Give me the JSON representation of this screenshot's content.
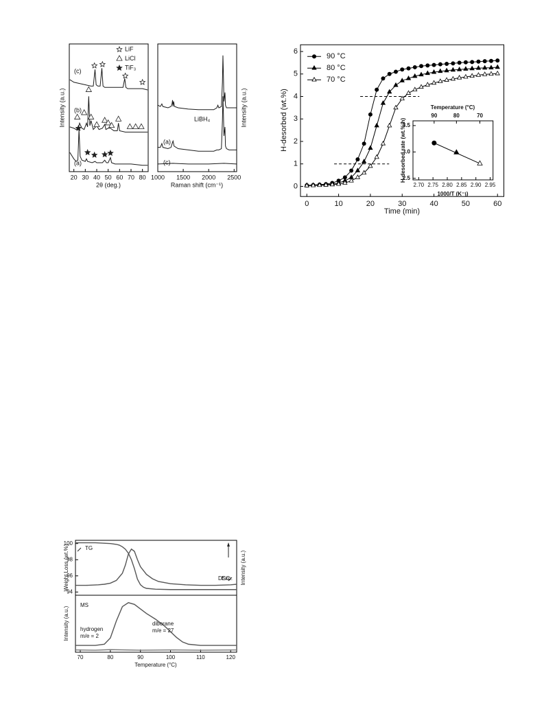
{
  "chart_data": [
    {
      "type": "line",
      "x_label": "2θ (deg.)",
      "y_label": "Intensity (a.u.)",
      "xlim": [
        16,
        85
      ],
      "ylim": [
        0,
        100
      ],
      "xticks": [
        20,
        30,
        40,
        50,
        60,
        70,
        80
      ],
      "series": [
        {
          "name": "(a)",
          "color": "#1a1a1a",
          "x": [
            16.5,
            20,
            22,
            23.5,
            24.5,
            25.5,
            27,
            30,
            31,
            32,
            36,
            38.5,
            40,
            45,
            47,
            48.5,
            50,
            52,
            53,
            56,
            60,
            70,
            80,
            84.5
          ],
          "values": [
            15,
            10,
            8,
            9,
            33,
            12,
            9,
            8,
            10,
            8,
            7,
            8,
            7,
            7,
            9,
            7,
            7,
            11,
            7,
            6,
            6,
            6,
            5,
            5
          ]
        },
        {
          "name": "(b)",
          "color": "#1a1a1a",
          "x": [
            16.5,
            20,
            22,
            24,
            25,
            27,
            29,
            31,
            32,
            33,
            34,
            35,
            37,
            40,
            42,
            45,
            47,
            48,
            50,
            52,
            55,
            58,
            59,
            60,
            65,
            70,
            75,
            80,
            84.5
          ],
          "values": [
            35,
            34,
            33,
            34,
            38,
            34,
            33,
            38,
            35,
            59,
            36,
            40,
            33,
            36,
            33,
            34,
            37,
            33,
            34,
            34,
            32,
            32,
            38,
            32,
            31,
            31,
            31,
            31,
            31
          ]
        },
        {
          "name": "(c)",
          "color": "#1a1a1a",
          "x": [
            16.5,
            20,
            25,
            30,
            35,
            37,
            38.5,
            39.5,
            41,
            43,
            44.5,
            45.5,
            47,
            55,
            60,
            63,
            64.5,
            65.5,
            67,
            75,
            80,
            84.5
          ],
          "values": [
            72,
            70,
            69,
            68,
            67,
            67,
            80,
            68,
            67,
            67,
            81,
            67,
            66,
            66,
            66,
            66,
            73,
            66,
            65,
            65,
            65,
            64
          ]
        }
      ],
      "peak_markers": [
        {
          "name": "LiF",
          "symbol": "open-star",
          "x": [
            38,
            45,
            65,
            80
          ],
          "y": [
            83,
            84,
            75,
            70
          ]
        },
        {
          "name": "LiCl",
          "symbol": "open-triangle",
          "x": [
            23,
            29,
            33,
            35,
            40,
            47,
            50,
            53,
            59,
            69,
            74,
            79
          ],
          "y": [
            42.5,
            46,
            64,
            42.5,
            36.6,
            40,
            38,
            36,
            41,
            35,
            35,
            35
          ]
        },
        {
          "name": "TiF₃",
          "symbol": "filled-star",
          "x": [
            24,
            32,
            38,
            47,
            52
          ],
          "y": [
            34,
            15,
            13,
            13.4,
            14.5
          ]
        }
      ]
    },
    {
      "type": "line",
      "x_label": "Raman shift (cm⁻¹)",
      "y_label": "Intensity (a.u.)",
      "xlim": [
        1000,
        2550
      ],
      "ylim": [
        0,
        100
      ],
      "xticks": [
        1000,
        1500,
        2000,
        2500
      ],
      "series": [
        {
          "name": "LiBH₄",
          "color": "#1a1a1a",
          "x": [
            1005,
            1050,
            1080,
            1100,
            1200,
            1260,
            1280,
            1290,
            1300,
            1310,
            1330,
            1400,
            1600,
            1800,
            2000,
            2100,
            2160,
            2180,
            2200,
            2250,
            2270,
            2280,
            2290,
            2300,
            2320,
            2330,
            2350,
            2400,
            2500,
            2545
          ],
          "values": [
            52,
            51,
            53,
            51,
            50,
            51,
            53,
            56,
            51,
            55,
            51,
            50,
            49,
            48.5,
            48.5,
            48.5,
            50,
            52,
            50,
            51,
            70,
            91,
            75,
            55,
            62,
            52,
            50,
            50,
            50,
            50
          ]
        },
        {
          "name": "(a)",
          "color": "#1a1a1a",
          "x": [
            1005,
            1050,
            1080,
            1100,
            1200,
            1260,
            1290,
            1300,
            1320,
            1400,
            1600,
            1800,
            2000,
            2100,
            2160,
            2200,
            2250,
            2270,
            2280,
            2290,
            2300,
            2320,
            2330,
            2350,
            2400,
            2500,
            2545
          ],
          "values": [
            19,
            19,
            22,
            19,
            18,
            19,
            23,
            24,
            20,
            18,
            17,
            16,
            16,
            16,
            17,
            17,
            18,
            40,
            59,
            45,
            28,
            35,
            20,
            18,
            17,
            17,
            17
          ]
        },
        {
          "name": "(c)",
          "color": "#1a1a1a",
          "x": [
            1005,
            1300,
            1600,
            2000,
            2300,
            2545
          ],
          "values": [
            6,
            6.5,
            6,
            6,
            6.5,
            6
          ]
        }
      ]
    },
    {
      "type": "line",
      "x_label": "Time (min)",
      "y_label": "H-desorbed (wt.%)",
      "xlim": [
        -2,
        62
      ],
      "ylim": [
        -0.45,
        6.3
      ],
      "xticks": [
        0,
        10,
        20,
        30,
        40,
        50,
        60
      ],
      "yticks": [
        0,
        1,
        2,
        3,
        4,
        5,
        6
      ],
      "legend": "upper left",
      "series": [
        {
          "name": "90 °C",
          "color": "#000000",
          "marker": "circle",
          "x": [
            0,
            2,
            4,
            6,
            8,
            10,
            12,
            14,
            16,
            18,
            20,
            22,
            24,
            26,
            28,
            30,
            32,
            34,
            36,
            38,
            40,
            42,
            44,
            46,
            48,
            50,
            52,
            54,
            56,
            58,
            60
          ],
          "values": [
            0.05,
            0.06,
            0.08,
            0.1,
            0.15,
            0.25,
            0.4,
            0.7,
            1.2,
            1.9,
            3.2,
            4.3,
            4.8,
            5.0,
            5.1,
            5.2,
            5.25,
            5.3,
            5.35,
            5.38,
            5.4,
            5.43,
            5.45,
            5.47,
            5.5,
            5.52,
            5.53,
            5.55,
            5.57,
            5.58,
            5.6
          ]
        },
        {
          "name": "80 °C",
          "color": "#000000",
          "marker": "triangle",
          "x": [
            0,
            2,
            4,
            6,
            8,
            10,
            12,
            14,
            16,
            18,
            20,
            22,
            24,
            26,
            28,
            30,
            32,
            34,
            36,
            38,
            40,
            42,
            44,
            46,
            48,
            50,
            52,
            54,
            56,
            58,
            60
          ],
          "values": [
            0.05,
            0.05,
            0.06,
            0.08,
            0.1,
            0.15,
            0.25,
            0.4,
            0.7,
            1.1,
            1.7,
            2.7,
            3.7,
            4.2,
            4.5,
            4.7,
            4.8,
            4.9,
            4.97,
            5.03,
            5.08,
            5.12,
            5.15,
            5.18,
            5.2,
            5.22,
            5.24,
            5.26,
            5.27,
            5.28,
            5.3
          ]
        },
        {
          "name": "70 °C",
          "color": "#000000",
          "marker": "open-triangle",
          "x": [
            0,
            2,
            4,
            6,
            8,
            10,
            12,
            14,
            16,
            18,
            20,
            22,
            24,
            26,
            28,
            30,
            32,
            34,
            36,
            38,
            40,
            42,
            44,
            46,
            48,
            50,
            52,
            54,
            56,
            58,
            60
          ],
          "values": [
            0.03,
            0.04,
            0.05,
            0.06,
            0.08,
            0.1,
            0.15,
            0.25,
            0.4,
            0.6,
            0.9,
            1.3,
            1.9,
            2.7,
            3.5,
            3.9,
            4.15,
            4.3,
            4.42,
            4.52,
            4.6,
            4.67,
            4.73,
            4.78,
            4.83,
            4.87,
            4.91,
            4.95,
            4.98,
            5.0,
            5.02
          ]
        }
      ],
      "reference_lines": [
        {
          "y": 1,
          "x": [
            8.6,
            25.9
          ]
        },
        {
          "y": 4,
          "x": [
            16.8,
            35.4
          ]
        }
      ]
    },
    {
      "type": "scatter",
      "x_label": "1000/T (K⁻¹)",
      "y_label": "H-desorbed rate (wt.%/h)",
      "x2_label": "Temperature (°C)",
      "xlim": [
        2.68,
        2.96
      ],
      "ylim": [
        2.47,
        3.59
      ],
      "xticks": [
        {
          "value": 2.7,
          "label": "2.70"
        },
        2.75,
        {
          "value": 2.8,
          "label": "2.80"
        },
        2.85,
        {
          "value": 2.9,
          "label": "2.90"
        },
        2.95
      ],
      "yticks": [
        2.5,
        {
          "value": 3,
          "label": "3.0"
        },
        3.5
      ],
      "x2ticks": [
        {
          "value": 2.754,
          "label": "90"
        },
        {
          "value": 2.832,
          "label": "80"
        },
        {
          "value": 2.914,
          "label": "70"
        }
      ],
      "fit_line": true,
      "series": [
        {
          "color": "#000000",
          "markers": [
            "circle",
            "triangle",
            "open-triangle"
          ],
          "x": [
            2.754,
            2.832,
            2.914
          ],
          "values": [
            3.17,
            2.99,
            2.78
          ]
        }
      ]
    },
    {
      "type": "line",
      "y_label": "Weight Loss (wt.%)",
      "y2_label": "Intensity (a.u.)",
      "xlim": [
        68.4,
        122
      ],
      "ylim": [
        93.6,
        100.4
      ],
      "y2lim": [
        0,
        100
      ],
      "yticks": [
        94,
        96,
        98,
        100
      ],
      "annotations": [
        "Exo."
      ],
      "series": [
        {
          "name": "TG",
          "color": "#555555",
          "x": [
            68.4,
            75,
            80,
            82,
            83,
            84,
            85,
            86,
            87,
            88,
            89,
            90,
            91,
            92,
            95,
            100,
            110,
            122
          ],
          "values": [
            100.1,
            100.1,
            100,
            99.9,
            99.8,
            99.6,
            99.3,
            98.8,
            98,
            96.9,
            95.6,
            94.9,
            94.6,
            94.45,
            94.35,
            94.3,
            94.3,
            94.3
          ]
        },
        {
          "name": "DSC",
          "color": "#555555",
          "axis": "y2",
          "x": [
            68.4,
            72,
            76,
            78,
            80,
            82,
            84,
            85,
            86,
            87,
            88,
            89,
            90,
            92,
            94,
            96,
            100,
            105,
            110,
            115,
            120,
            122
          ],
          "values": [
            18,
            18,
            19,
            20,
            22,
            27,
            40,
            55,
            75,
            84,
            80,
            65,
            52,
            38,
            30,
            25,
            21,
            19,
            18,
            18,
            19,
            20
          ]
        }
      ]
    },
    {
      "type": "line",
      "x_label": "Temperature (°C)",
      "y_label": "Intensity (a.u.)",
      "xlim": [
        68.4,
        122
      ],
      "ylim": [
        0,
        100
      ],
      "xticks": [
        70,
        80,
        90,
        100,
        110,
        120
      ],
      "annotations": [
        "MS",
        "m/e = 2",
        "m/e = 27"
      ],
      "series": [
        {
          "name": "hydrogen",
          "color": "#555555",
          "x": [
            68.4,
            75,
            78,
            80,
            82,
            84,
            86,
            88,
            90,
            92,
            95,
            98,
            100,
            102,
            104,
            106,
            110,
            122
          ],
          "values": [
            12,
            12,
            14,
            25,
            55,
            80,
            87,
            84,
            76,
            68,
            58,
            46,
            36,
            26,
            18,
            14,
            12,
            12
          ]
        },
        {
          "name": "diborane",
          "color": "#777777",
          "x": [
            68.4,
            75,
            80,
            90,
            100,
            110,
            122
          ],
          "values": [
            4,
            3.5,
            4.5,
            3.5,
            4,
            3.5,
            4
          ]
        }
      ]
    }
  ]
}
